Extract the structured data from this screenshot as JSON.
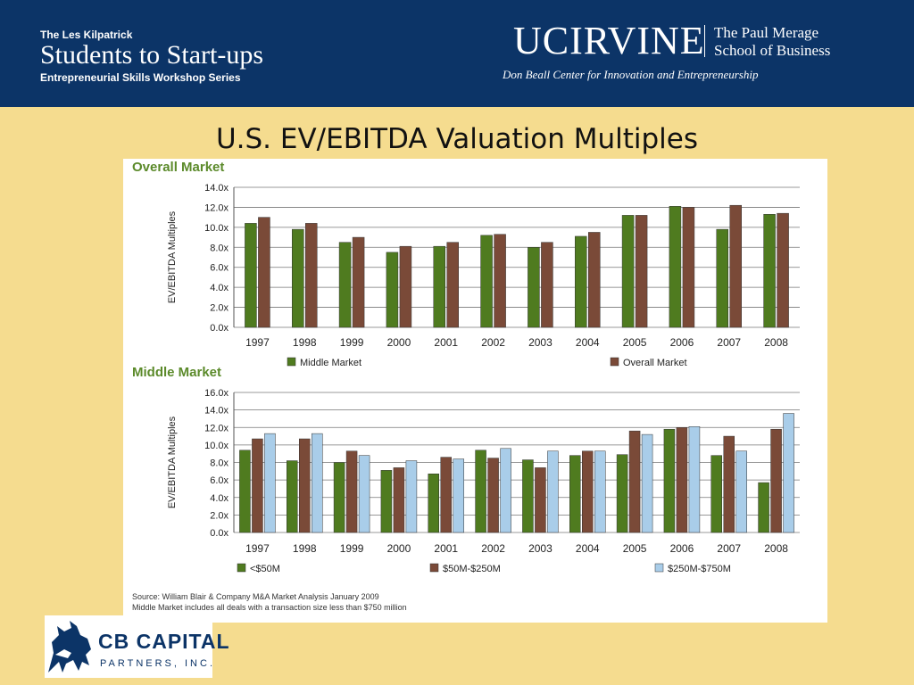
{
  "header": {
    "series_label": "The Les Kilpatrick",
    "program_title": "Students to Start-ups",
    "program_subtitle": "Entrepreneurial Skills Workshop Series",
    "university_logo_text": "UCIRVINE",
    "school_name_line1": "The Paul Merage",
    "school_name_line2": "School of Business",
    "center_name": "Don Beall Center for Innovation and Entrepreneurship",
    "background_color": "#0c3467"
  },
  "slide": {
    "title": "U.S. EV/EBITDA Valuation Multiples",
    "background_color": "#f5dc8f"
  },
  "footer": {
    "logo_name": "CB CAPITAL",
    "logo_sub": "PARTNERS, INC."
  },
  "chart_data": [
    {
      "type": "bar",
      "title": "Overall Market",
      "ylabel": "EV/EBITDA Multiples",
      "xlabel": "",
      "ylim": [
        0,
        14
      ],
      "yticks": [
        "0.0x",
        "2.0x",
        "4.0x",
        "6.0x",
        "8.0x",
        "10.0x",
        "12.0x",
        "14.0x"
      ],
      "categories": [
        "1997",
        "1998",
        "1999",
        "2000",
        "2001",
        "2002",
        "2003",
        "2004",
        "2005",
        "2006",
        "2007",
        "2008"
      ],
      "series": [
        {
          "name": "Middle Market",
          "color": "#4f7b1f",
          "values": [
            10.4,
            9.8,
            8.5,
            7.5,
            8.1,
            9.2,
            8.0,
            9.1,
            11.2,
            12.1,
            9.8,
            11.3
          ]
        },
        {
          "name": "Overall Market",
          "color": "#7a4a38",
          "values": [
            11.0,
            10.4,
            9.0,
            8.1,
            8.5,
            9.3,
            8.5,
            9.5,
            11.2,
            12.0,
            12.2,
            11.4
          ]
        }
      ],
      "grid": true,
      "legend_position": "bottom"
    },
    {
      "type": "bar",
      "title": "Middle Market",
      "ylabel": "EV/EBITDA Multiples",
      "xlabel": "",
      "ylim": [
        0,
        16
      ],
      "yticks": [
        "0.0x",
        "2.0x",
        "4.0x",
        "6.0x",
        "8.0x",
        "10.0x",
        "12.0x",
        "14.0x",
        "16.0x"
      ],
      "categories": [
        "1997",
        "1998",
        "1999",
        "2000",
        "2001",
        "2002",
        "2003",
        "2004",
        "2005",
        "2006",
        "2007",
        "2008"
      ],
      "series": [
        {
          "name": "<$50M",
          "color": "#4f7b1f",
          "values": [
            9.4,
            8.2,
            8.0,
            7.1,
            6.7,
            9.4,
            8.3,
            8.8,
            8.9,
            11.8,
            8.8,
            5.7
          ]
        },
        {
          "name": "$50M-$250M",
          "color": "#7a4a38",
          "values": [
            10.7,
            10.7,
            9.3,
            7.4,
            8.6,
            8.5,
            7.4,
            9.3,
            11.6,
            12.0,
            11.0,
            11.8
          ]
        },
        {
          "name": "$250M-$750M",
          "color": "#a9cde9",
          "values": [
            11.3,
            11.3,
            8.8,
            8.2,
            8.4,
            9.6,
            9.3,
            9.3,
            11.2,
            12.1,
            9.3,
            13.6
          ]
        }
      ],
      "grid": true,
      "legend_position": "bottom"
    }
  ],
  "source": {
    "line1": "Source:  William Blair & Company M&A Market Analysis January 2009",
    "line2": "Middle Market includes all deals with a transaction size less than $750 million"
  }
}
